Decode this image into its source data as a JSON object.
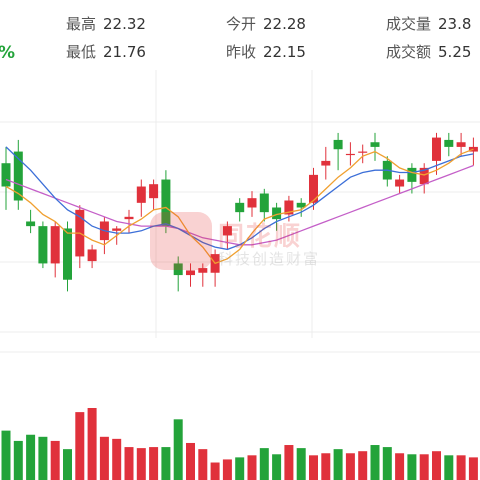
{
  "quote": {
    "change_percent_visible": "%",
    "high": {
      "label": "最高",
      "value": "22.32"
    },
    "low": {
      "label": "最低",
      "value": "21.76"
    },
    "open": {
      "label": "今开",
      "value": "22.28"
    },
    "prev_close": {
      "label": "昨收",
      "value": "22.15"
    },
    "volume": {
      "label": "成交量",
      "value": "23.8"
    },
    "turnover": {
      "label": "成交额",
      "value": "5.25"
    }
  },
  "watermark": {
    "brand": "同花顺",
    "slogan": "科技创造财富"
  },
  "colors": {
    "up": "#e0313b",
    "down": "#23a33a",
    "ma_short": "#f0a030",
    "ma_mid": "#3c6fd8",
    "ma_long": "#c45fc8",
    "grid": "#ececec"
  },
  "chart_data": {
    "type": "candlestick",
    "title": "",
    "candles": [
      {
        "o": 22.15,
        "c": 22.05,
        "h": 22.22,
        "l": 21.95
      },
      {
        "o": 22.2,
        "c": 21.99,
        "h": 22.25,
        "l": 21.95
      },
      {
        "o": 21.9,
        "c": 21.88,
        "h": 21.95,
        "l": 21.85
      },
      {
        "o": 21.88,
        "c": 21.72,
        "h": 21.9,
        "l": 21.7
      },
      {
        "o": 21.72,
        "c": 21.88,
        "h": 21.9,
        "l": 21.66
      },
      {
        "o": 21.87,
        "c": 21.65,
        "h": 21.9,
        "l": 21.6
      },
      {
        "o": 21.75,
        "c": 21.95,
        "h": 21.97,
        "l": 21.7
      },
      {
        "o": 21.73,
        "c": 21.78,
        "h": 21.8,
        "l": 21.7
      },
      {
        "o": 21.82,
        "c": 21.9,
        "h": 21.92,
        "l": 21.76
      },
      {
        "o": 21.86,
        "c": 21.87,
        "h": 21.88,
        "l": 21.8
      },
      {
        "o": 21.91,
        "c": 21.92,
        "h": 21.95,
        "l": 21.85
      },
      {
        "o": 21.98,
        "c": 22.05,
        "h": 22.08,
        "l": 21.92
      },
      {
        "o": 22.0,
        "c": 22.06,
        "h": 22.08,
        "l": 21.95
      },
      {
        "o": 22.08,
        "c": 21.88,
        "h": 22.12,
        "l": 21.85
      },
      {
        "o": 21.72,
        "c": 21.67,
        "h": 21.75,
        "l": 21.6
      },
      {
        "o": 21.67,
        "c": 21.69,
        "h": 21.72,
        "l": 21.62
      },
      {
        "o": 21.68,
        "c": 21.7,
        "h": 21.72,
        "l": 21.62
      },
      {
        "o": 21.68,
        "c": 21.76,
        "h": 21.78,
        "l": 21.62
      },
      {
        "o": 21.84,
        "c": 21.88,
        "h": 21.9,
        "l": 21.78
      },
      {
        "o": 21.98,
        "c": 21.94,
        "h": 22.0,
        "l": 21.9
      },
      {
        "o": 21.96,
        "c": 22.0,
        "h": 22.03,
        "l": 21.92
      },
      {
        "o": 22.02,
        "c": 21.94,
        "h": 22.04,
        "l": 21.9
      },
      {
        "o": 21.96,
        "c": 21.91,
        "h": 21.98,
        "l": 21.86
      },
      {
        "o": 21.93,
        "c": 21.99,
        "h": 22.01,
        "l": 21.9
      },
      {
        "o": 21.98,
        "c": 21.96,
        "h": 22.0,
        "l": 21.92
      },
      {
        "o": 21.98,
        "c": 22.1,
        "h": 22.13,
        "l": 21.95
      },
      {
        "o": 22.14,
        "c": 22.16,
        "h": 22.22,
        "l": 22.08
      },
      {
        "o": 22.25,
        "c": 22.21,
        "h": 22.28,
        "l": 22.12
      },
      {
        "o": 22.19,
        "c": 22.19,
        "h": 22.24,
        "l": 22.14
      },
      {
        "o": 22.2,
        "c": 22.2,
        "h": 22.23,
        "l": 22.15
      },
      {
        "o": 22.24,
        "c": 22.22,
        "h": 22.28,
        "l": 22.16
      },
      {
        "o": 22.16,
        "c": 22.08,
        "h": 22.18,
        "l": 22.05
      },
      {
        "o": 22.05,
        "c": 22.08,
        "h": 22.1,
        "l": 22.02
      },
      {
        "o": 22.13,
        "c": 22.07,
        "h": 22.15,
        "l": 22.02
      },
      {
        "o": 22.06,
        "c": 22.13,
        "h": 22.15,
        "l": 22.02
      },
      {
        "o": 22.16,
        "c": 22.26,
        "h": 22.28,
        "l": 22.1
      },
      {
        "o": 22.25,
        "c": 22.22,
        "h": 22.28,
        "l": 22.18
      },
      {
        "o": 22.22,
        "c": 22.24,
        "h": 22.28,
        "l": 22.18
      },
      {
        "o": 22.2,
        "c": 22.22,
        "h": 22.26,
        "l": 22.14
      }
    ],
    "ma_short": [
      22.05,
      22.02,
      21.98,
      21.93,
      21.9,
      21.85,
      21.85,
      21.82,
      21.8,
      21.84,
      21.88,
      21.91,
      21.95,
      21.96,
      21.92,
      21.84,
      21.79,
      21.72,
      21.74,
      21.78,
      21.85,
      21.91,
      21.93,
      21.94,
      21.95,
      21.99,
      22.04,
      22.09,
      22.13,
      22.18,
      22.2,
      22.17,
      22.13,
      22.11,
      22.1,
      22.12,
      22.15,
      22.19,
      22.21
    ],
    "ma_mid": [
      22.22,
      22.17,
      22.12,
      22.06,
      22.0,
      21.95,
      21.92,
      21.88,
      21.86,
      21.85,
      21.85,
      21.86,
      21.88,
      21.89,
      21.87,
      21.84,
      21.81,
      21.79,
      21.78,
      21.8,
      21.83,
      21.87,
      21.9,
      21.92,
      21.94,
      21.97,
      22.01,
      22.05,
      22.09,
      22.11,
      22.12,
      22.12,
      22.11,
      22.11,
      22.12,
      22.14,
      22.16,
      22.18,
      22.19
    ],
    "ma_long": [
      22.08,
      22.06,
      22.04,
      22.02,
      22.0,
      21.98,
      21.96,
      21.94,
      21.92,
      21.9,
      21.89,
      21.88,
      21.88,
      21.88,
      21.87,
      21.85,
      21.83,
      21.82,
      21.81,
      21.8,
      21.8,
      21.81,
      21.82,
      21.84,
      21.86,
      21.88,
      21.9,
      21.92,
      21.94,
      21.96,
      21.98,
      22.0,
      22.02,
      22.04,
      22.06,
      22.08,
      22.1,
      22.12,
      22.14
    ],
    "volume": [
      48,
      38,
      44,
      42,
      38,
      30,
      66,
      70,
      42,
      40,
      32,
      31,
      32,
      32,
      59,
      36,
      30,
      17,
      20,
      22,
      24,
      31,
      25,
      34,
      31,
      24,
      26,
      30,
      26,
      28,
      34,
      32,
      26,
      25,
      25,
      28,
      24,
      24,
      22
    ]
  }
}
